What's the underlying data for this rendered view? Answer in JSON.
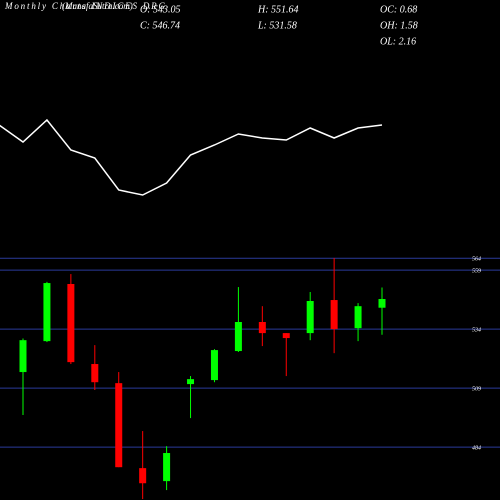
{
  "chart_data": {
    "type": "candlestick",
    "title": "Monthly Charts INDICES DRG",
    "source": "(MunafaSutra.com)",
    "stats": [
      "O: 543.05",
      "H: 551.64",
      "OC: 0.68",
      "C: 546.74",
      "L: 531.58",
      "OH: 1.58",
      "OL: 2.16"
    ],
    "indicator": {
      "color": "#ffffff",
      "values": [
        175,
        158,
        180,
        150,
        142,
        110,
        105,
        117,
        145,
        155,
        166,
        162,
        160,
        172,
        162,
        172,
        175
      ]
    },
    "open": [
      515.8,
      528.9,
      553.1,
      519.2,
      511.1,
      475.1,
      469.6,
      510.7,
      512.4,
      524.7,
      537.0,
      532.3,
      532.3,
      546.3,
      534.4,
      543.05
    ],
    "high": [
      530.0,
      554.0,
      557.3,
      527.2,
      515.8,
      490.8,
      484.4,
      514.1,
      525.5,
      551.8,
      543.7,
      532.3,
      549.7,
      564.1,
      545.0,
      551.64
    ],
    "low": [
      497.6,
      528.5,
      519.2,
      508.2,
      475.5,
      462.0,
      465.8,
      496.3,
      511.5,
      524.3,
      526.8,
      514.1,
      529.3,
      523.8,
      528.9,
      531.58
    ],
    "close": [
      529.3,
      553.5,
      520.0,
      511.5,
      475.5,
      468.7,
      481.5,
      512.8,
      525.1,
      537.0,
      532.3,
      530.2,
      545.9,
      534.0,
      543.7,
      546.74
    ],
    "up_color": "#00ff00",
    "down_color": "#ff0000",
    "grid_color": "#2a3a9a",
    "ylim": [
      461.6,
      567.5
    ],
    "yticks": [
      484,
      509,
      534,
      559,
      564
    ],
    "grid": true
  }
}
